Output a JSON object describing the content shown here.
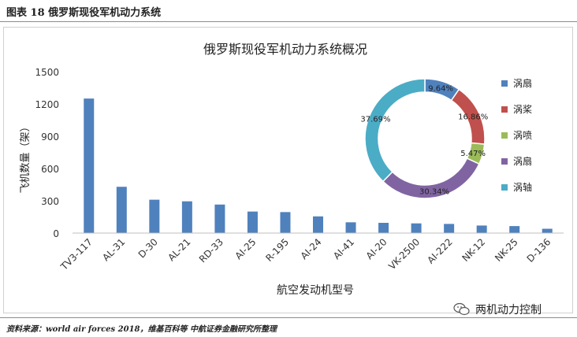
{
  "figure_label": "图表 18 俄罗斯现役军机动力系统",
  "source_note": "资料来源：world air forces 2018，维基百科等 中航证券金融研究所整理",
  "watermark_text": "两机动力控制",
  "chart_data": [
    {
      "type": "bar",
      "title": "俄罗斯现役军机动力系统概况",
      "xlabel": "航空发动机型号",
      "ylabel": "飞机数量（架）",
      "ylim": [
        0,
        1500
      ],
      "yticks": [
        "0",
        "300",
        "600",
        "900",
        "1200",
        "1500"
      ],
      "grid": false,
      "categories": [
        "TV3-117",
        "AL-31",
        "D-30",
        "AL-21",
        "RD-33",
        "AI-25",
        "R-195",
        "AI-24",
        "AI-41",
        "AI-20",
        "VK-2500",
        "AI-222",
        "NK-12",
        "NK-25",
        "D-136"
      ],
      "values": [
        1250,
        430,
        310,
        295,
        265,
        200,
        195,
        155,
        100,
        95,
        90,
        85,
        70,
        65,
        40
      ],
      "bar_color": "#4f81bd"
    },
    {
      "type": "pie",
      "donut": true,
      "labels": [
        "涡扇",
        "涡桨",
        "涡喷",
        "涡扇",
        "涡轴"
      ],
      "values": [
        9.64,
        16.86,
        5.47,
        30.34,
        37.69
      ],
      "value_labels": [
        "9.64%",
        "16.86%",
        "5.47%",
        "30.34%",
        "37.69%"
      ],
      "colors": [
        "#4f81bd",
        "#c0504d",
        "#9bbb59",
        "#8064a2",
        "#4bacc6"
      ],
      "legend": "right"
    }
  ]
}
